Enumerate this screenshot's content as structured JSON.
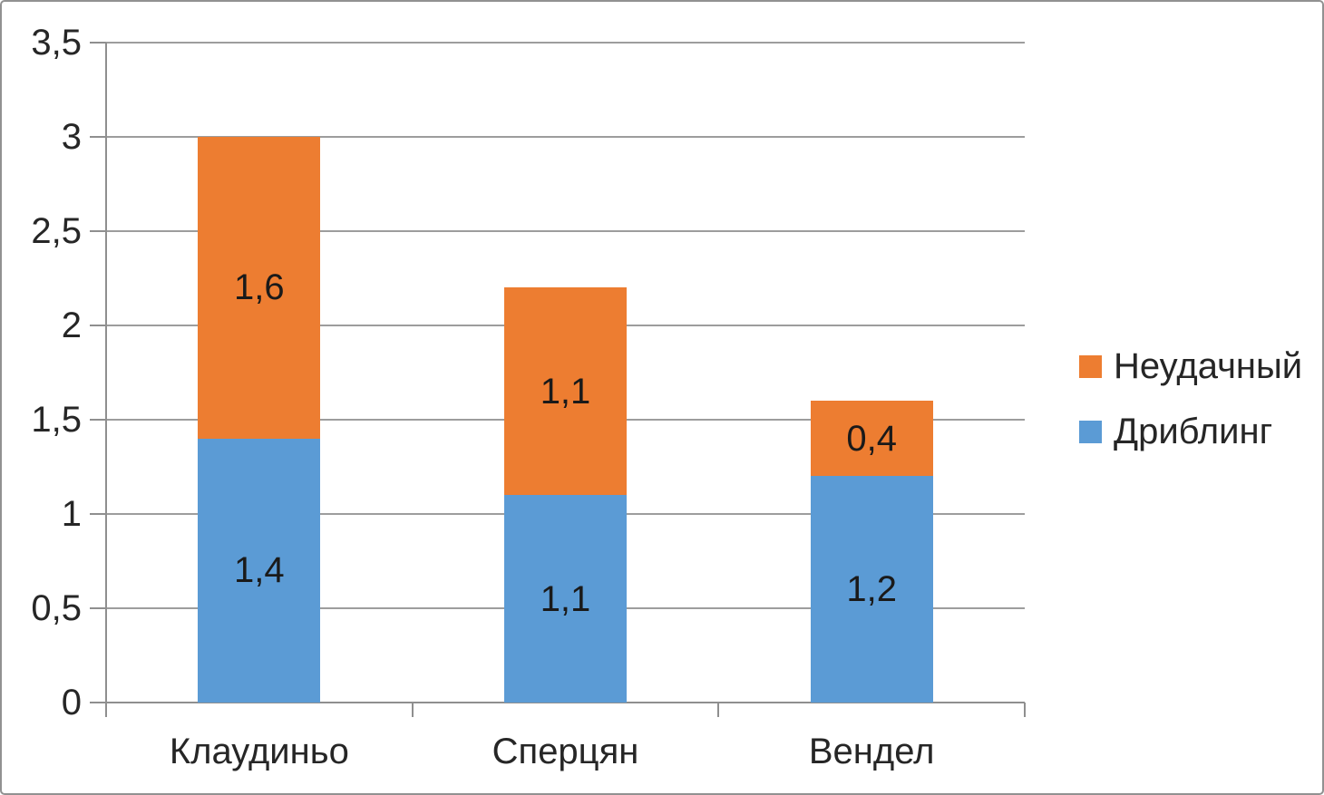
{
  "chart_data": {
    "type": "bar",
    "stacked": true,
    "title": "",
    "xlabel": "",
    "ylabel": "",
    "categories": [
      "Клаудиньо",
      "Сперцян",
      "Вендел"
    ],
    "series": [
      {
        "name": "Дриблинг",
        "color": "#5B9BD5",
        "values": [
          1.4,
          1.1,
          1.2
        ],
        "labels": [
          "1,4",
          "1,1",
          "1,2"
        ]
      },
      {
        "name": "Неудачный",
        "color": "#ED7D31",
        "values": [
          1.6,
          1.1,
          0.4
        ],
        "labels": [
          "1,6",
          "1,1",
          "0,4"
        ]
      }
    ],
    "totals": [
      3.0,
      2.2,
      1.6
    ],
    "y_axis": {
      "min": 0,
      "max": 3.5,
      "step": 0.5,
      "tick_labels": [
        "0",
        "0,5",
        "1",
        "1,5",
        "2",
        "2,5",
        "3",
        "3,5"
      ]
    },
    "grid": true,
    "legend": {
      "position": "right",
      "order": [
        "Неудачный",
        "Дриблинг"
      ]
    },
    "colors": {
      "grid": "#9d9d9d",
      "axis": "#8f8f8f",
      "text": "#262626",
      "background": "#ffffff",
      "frame_border": "#919191"
    }
  }
}
